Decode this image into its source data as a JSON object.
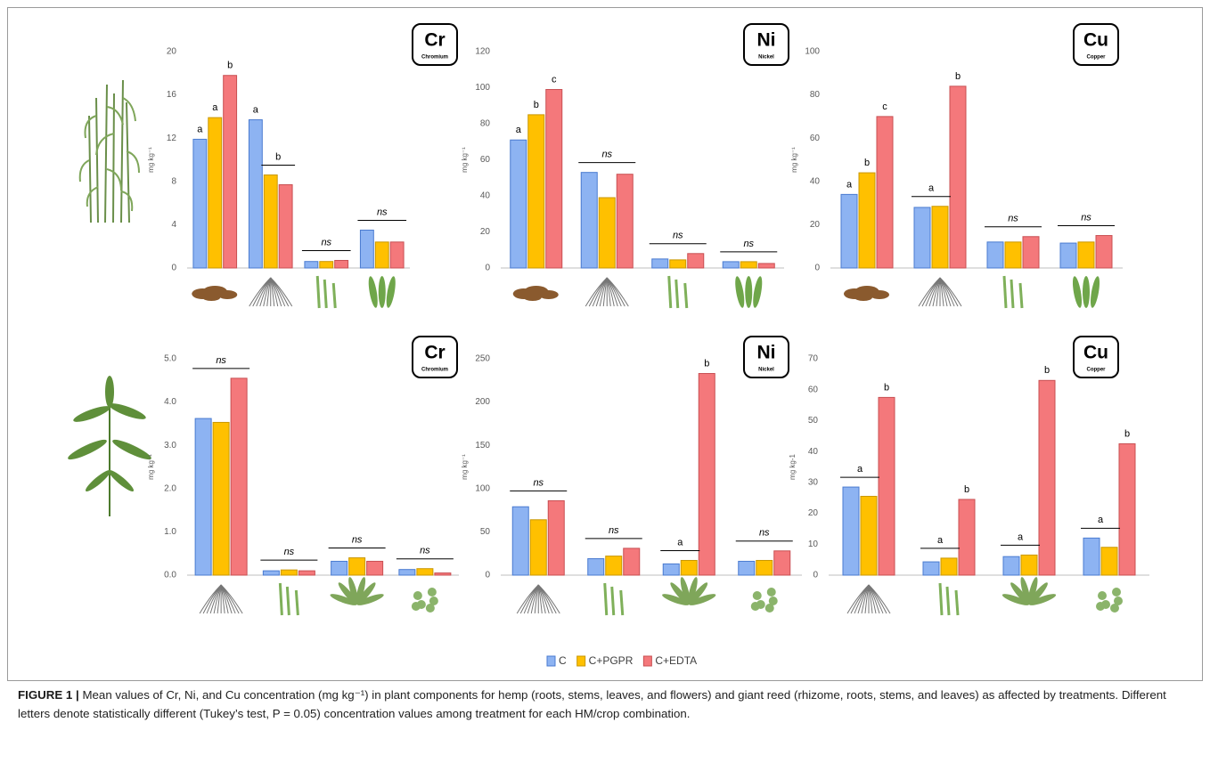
{
  "chart_data": [
    {
      "type": "bar",
      "ylabel": "mg kg⁻¹",
      "badge": {
        "symbol": "Cr",
        "name": "Chromium"
      },
      "categories": [
        null,
        null,
        null,
        null
      ],
      "ylim": [
        0,
        20
      ],
      "yticks": [
        0,
        4,
        8,
        12,
        16,
        20
      ],
      "series": [
        {
          "name": "C",
          "color": "#8db3f2",
          "values": [
            11.9,
            13.7,
            0.6,
            3.5
          ]
        },
        {
          "name": "C+PGPR",
          "color": "#ffc000",
          "values": [
            13.9,
            8.6,
            0.6,
            2.4
          ]
        },
        {
          "name": "C+EDTA",
          "color": "#f4787b",
          "values": [
            17.8,
            7.7,
            0.7,
            2.4
          ]
        }
      ],
      "letters": [
        [
          {
            "text": "a",
            "span": [
              0,
              0
            ]
          },
          {
            "text": "a",
            "span": [
              1,
              1
            ]
          },
          {
            "text": "b",
            "span": [
              2,
              2
            ]
          }
        ],
        [
          {
            "text": "a",
            "span": [
              0,
              0
            ]
          },
          {
            "text": "b",
            "span": [
              1,
              2
            ]
          }
        ],
        [
          {
            "text": "ns",
            "span": [
              0,
              2
            ]
          }
        ],
        [
          {
            "text": "ns",
            "span": [
              0,
              2
            ]
          }
        ]
      ]
    },
    {
      "type": "bar",
      "ylabel": "mg kg⁻¹",
      "badge": {
        "symbol": "Ni",
        "name": "Nickel"
      },
      "categories": [
        null,
        null,
        null,
        null
      ],
      "ylim": [
        0,
        120
      ],
      "yticks": [
        0,
        20,
        40,
        60,
        80,
        100,
        120
      ],
      "series": [
        {
          "name": "C",
          "color": "#8db3f2",
          "values": [
            71,
            53,
            5,
            3.5
          ]
        },
        {
          "name": "C+PGPR",
          "color": "#ffc000",
          "values": [
            85,
            39,
            4.5,
            3.5
          ]
        },
        {
          "name": "C+EDTA",
          "color": "#f4787b",
          "values": [
            99,
            52,
            8,
            2.5
          ]
        }
      ],
      "letters": [
        [
          {
            "text": "a",
            "span": [
              0,
              0
            ]
          },
          {
            "text": "b",
            "span": [
              1,
              1
            ]
          },
          {
            "text": "c",
            "span": [
              2,
              2
            ]
          }
        ],
        [
          {
            "text": "ns",
            "span": [
              0,
              2
            ]
          }
        ],
        [
          {
            "text": "ns",
            "span": [
              0,
              2
            ]
          }
        ],
        [
          {
            "text": "ns",
            "span": [
              0,
              2
            ]
          }
        ]
      ]
    },
    {
      "type": "bar",
      "ylabel": "mg kg⁻¹",
      "badge": {
        "symbol": "Cu",
        "name": "Copper"
      },
      "categories": [
        null,
        null,
        null,
        null
      ],
      "ylim": [
        0,
        100
      ],
      "yticks": [
        0,
        20,
        40,
        60,
        80,
        100
      ],
      "series": [
        {
          "name": "C",
          "color": "#8db3f2",
          "values": [
            34,
            28,
            12,
            11.5
          ]
        },
        {
          "name": "C+PGPR",
          "color": "#ffc000",
          "values": [
            44,
            28.5,
            12,
            12
          ]
        },
        {
          "name": "C+EDTA",
          "color": "#f4787b",
          "values": [
            70,
            84,
            14.5,
            15
          ]
        }
      ],
      "letters": [
        [
          {
            "text": "a",
            "span": [
              0,
              0
            ]
          },
          {
            "text": "b",
            "span": [
              1,
              1
            ]
          },
          {
            "text": "c",
            "span": [
              2,
              2
            ]
          }
        ],
        [
          {
            "text": "a",
            "span": [
              0,
              1
            ]
          },
          {
            "text": "b",
            "span": [
              2,
              2
            ]
          }
        ],
        [
          {
            "text": "ns",
            "span": [
              0,
              2
            ]
          }
        ],
        [
          {
            "text": "ns",
            "span": [
              0,
              2
            ]
          }
        ]
      ]
    },
    {
      "type": "bar",
      "ylabel": "mg kg⁻¹",
      "badge": {
        "symbol": "Cr",
        "name": "Chromium"
      },
      "categories": [
        null,
        null,
        null,
        null
      ],
      "ylim": [
        0,
        5
      ],
      "yticks": [
        {
          "value": 0,
          "label": "0.0"
        },
        {
          "value": 1,
          "label": "1.0"
        },
        {
          "value": 2,
          "label": "2.0"
        },
        {
          "value": 3,
          "label": "3.0"
        },
        {
          "value": 4,
          "label": "4.0"
        },
        {
          "value": 5,
          "label": "5.0"
        }
      ],
      "series": [
        {
          "name": "C",
          "color": "#8db3f2",
          "values": [
            3.62,
            0.1,
            0.32,
            0.13
          ]
        },
        {
          "name": "C+PGPR",
          "color": "#ffc000",
          "values": [
            3.53,
            0.12,
            0.4,
            0.15
          ]
        },
        {
          "name": "C+EDTA",
          "color": "#f4787b",
          "values": [
            4.55,
            0.1,
            0.32,
            0.05
          ]
        }
      ],
      "letters": [
        [
          {
            "text": "ns",
            "span": [
              0,
              2
            ]
          }
        ],
        [
          {
            "text": "ns",
            "span": [
              0,
              2
            ]
          }
        ],
        [
          {
            "text": "ns",
            "span": [
              0,
              2
            ]
          }
        ],
        [
          {
            "text": "ns",
            "span": [
              0,
              2
            ]
          }
        ]
      ]
    },
    {
      "type": "bar",
      "ylabel": "mg kg⁻¹",
      "badge": {
        "symbol": "Ni",
        "name": "Nickel"
      },
      "categories": [
        null,
        null,
        null,
        null
      ],
      "ylim": [
        0,
        250
      ],
      "yticks": [
        0,
        50,
        100,
        150,
        200,
        250
      ],
      "series": [
        {
          "name": "C",
          "color": "#8db3f2",
          "values": [
            79,
            19,
            13,
            16
          ]
        },
        {
          "name": "C+PGPR",
          "color": "#ffc000",
          "values": [
            64,
            22,
            17,
            17
          ]
        },
        {
          "name": "C+EDTA",
          "color": "#f4787b",
          "values": [
            86,
            31,
            233,
            28
          ]
        }
      ],
      "letters": [
        [
          {
            "text": "ns",
            "span": [
              0,
              2
            ]
          }
        ],
        [
          {
            "text": "ns",
            "span": [
              0,
              2
            ]
          }
        ],
        [
          {
            "text": "a",
            "span": [
              0,
              1
            ]
          },
          {
            "text": "b",
            "span": [
              2,
              2
            ]
          }
        ],
        [
          {
            "text": "ns",
            "span": [
              0,
              2
            ]
          }
        ]
      ]
    },
    {
      "type": "bar",
      "ylabel": "mg kg-1",
      "badge": {
        "symbol": "Cu",
        "name": "Copper"
      },
      "categories": [
        null,
        null,
        null,
        null
      ],
      "ylim": [
        0,
        70
      ],
      "yticks": [
        0,
        10,
        20,
        30,
        40,
        50,
        60,
        70
      ],
      "series": [
        {
          "name": "C",
          "color": "#8db3f2",
          "values": [
            28.5,
            4.3,
            6,
            12
          ]
        },
        {
          "name": "C+PGPR",
          "color": "#ffc000",
          "values": [
            25.5,
            5.5,
            6.5,
            9
          ]
        },
        {
          "name": "C+EDTA",
          "color": "#f4787b",
          "values": [
            57.5,
            24.5,
            63,
            42.5
          ]
        }
      ],
      "letters": [
        [
          {
            "text": "a",
            "span": [
              0,
              1
            ]
          },
          {
            "text": "b",
            "span": [
              2,
              2
            ]
          }
        ],
        [
          {
            "text": "a",
            "span": [
              0,
              1
            ]
          },
          {
            "text": "b",
            "span": [
              2,
              2
            ]
          }
        ],
        [
          {
            "text": "a",
            "span": [
              0,
              1
            ]
          },
          {
            "text": "b",
            "span": [
              2,
              2
            ]
          }
        ],
        [
          {
            "text": "a",
            "span": [
              0,
              1
            ]
          },
          {
            "text": "b",
            "span": [
              2,
              2
            ]
          }
        ]
      ]
    }
  ],
  "caption": {
    "label": "FIGURE 1 |",
    "text": "Mean values of Cr, Ni, and Cu concentration (mg kg⁻¹) in plant components for hemp (roots, stems, leaves, and flowers) and giant reed (rhizome, roots, stems, and leaves) as affected by treatments. Different letters denote statistically different (Tukey’s test, P = 0.05) concentration values among treatment for each HM/crop combination."
  }
}
